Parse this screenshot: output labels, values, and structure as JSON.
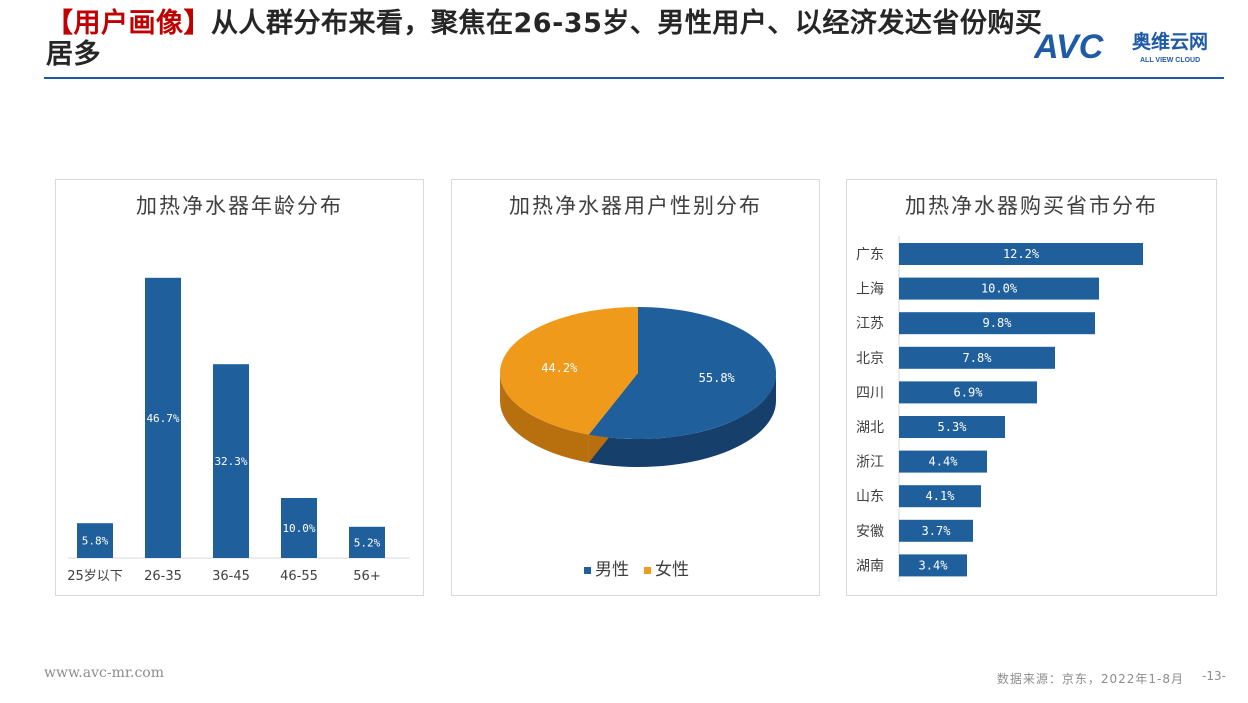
{
  "page": {
    "title_tag": "【用户画像】",
    "title_text": "从人群分布来看，聚焦在26-35岁、男性用户、以经济发达省份购买居多",
    "logo": {
      "mark": "AVC",
      "name": "奥维云网",
      "sub": "ALL VIEW CLOUD"
    },
    "footer_url": "www.avc-mr.com",
    "footer_source": "数据来源：京东，2022年1-8月",
    "page_number": "-13-"
  },
  "colors": {
    "blue": "#1f5f9c",
    "orange": "#f09a1c",
    "title_red": "#c00000",
    "rule": "#1f5aa6"
  },
  "chart_data": [
    {
      "type": "bar",
      "title": "加热净水器年龄分布",
      "categories": [
        "25岁以下",
        "26-35",
        "36-45",
        "46-55",
        "56+"
      ],
      "values": [
        5.8,
        46.7,
        32.3,
        10.0,
        5.2
      ],
      "labels": [
        "5.8%",
        "46.7%",
        "32.3%",
        "10.0%",
        "5.2%"
      ],
      "ylim": [
        0,
        50
      ],
      "grid": false
    },
    {
      "type": "pie",
      "title": "加热净水器用户性别分布",
      "categories": [
        "男性",
        "女性"
      ],
      "values": [
        55.8,
        44.2
      ],
      "labels": [
        "55.8%",
        "44.2%"
      ],
      "colors": [
        "#1f5f9c",
        "#f09a1c"
      ],
      "legend": "bottom"
    },
    {
      "type": "bar",
      "orientation": "horizontal",
      "title": "加热净水器购买省市分布",
      "categories": [
        "广东",
        "上海",
        "江苏",
        "北京",
        "四川",
        "湖北",
        "浙江",
        "山东",
        "安徽",
        "湖南"
      ],
      "values": [
        12.2,
        10.0,
        9.8,
        7.8,
        6.9,
        5.3,
        4.4,
        4.1,
        3.7,
        3.4
      ],
      "labels": [
        "12.2%",
        "10.0%",
        "9.8%",
        "7.8%",
        "6.9%",
        "5.3%",
        "4.4%",
        "4.1%",
        "3.7%",
        "3.4%"
      ],
      "xlim": [
        0,
        14
      ]
    }
  ]
}
